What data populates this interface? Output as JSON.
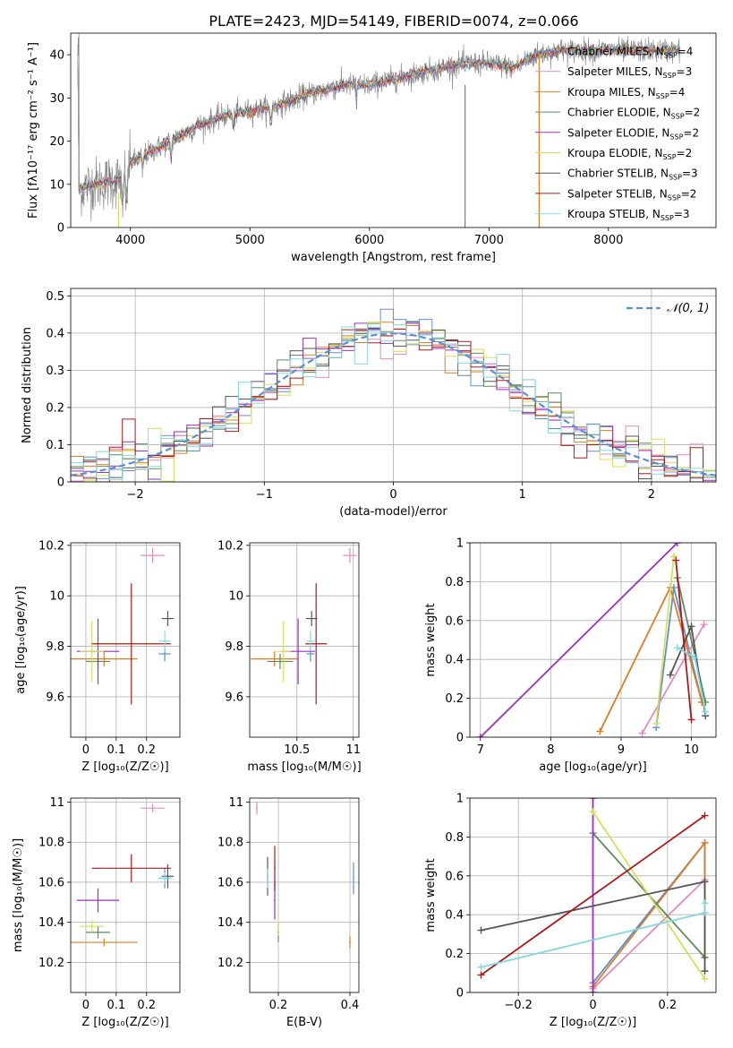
{
  "figure": {
    "title": "PLATE=2423, MJD=54149, FIBERID=0074, z=0.066"
  },
  "models": [
    {
      "name": "Chabrier MILES",
      "nssp": "4",
      "color": "#5b8fd6"
    },
    {
      "name": "Salpeter MILES",
      "nssp": "3",
      "color": "#e48ac0"
    },
    {
      "name": "Kroupa MILES",
      "nssp": "4",
      "color": "#e07b24"
    },
    {
      "name": "Chabrier ELODIE",
      "nssp": "2",
      "color": "#5e8a5e"
    },
    {
      "name": "Salpeter ELODIE",
      "nssp": "2",
      "color": "#9a2fc4"
    },
    {
      "name": "Kroupa ELODIE",
      "nssp": "2",
      "color": "#d4e05a"
    },
    {
      "name": "Chabrier STELIB",
      "nssp": "3",
      "color": "#555555"
    },
    {
      "name": "Salpeter STELIB",
      "nssp": "2",
      "color": "#b01818"
    },
    {
      "name": "Kroupa STELIB",
      "nssp": "3",
      "color": "#85d8e0"
    }
  ],
  "legend_nssp_prefix": "N",
  "legend_nssp_sub": "SSP",
  "chart_data": [
    {
      "type": "line",
      "panel": "spectrum",
      "xlabel": "wavelength [Angstrom, rest frame]",
      "ylabel": "Flux [fλ10⁻¹⁷ erg cm⁻² s⁻¹ A⁻¹]",
      "xlim": [
        3500,
        8900
      ],
      "ylim": [
        0,
        45
      ],
      "xticks": [
        4000,
        5000,
        6000,
        7000,
        8000
      ],
      "yticks": [
        0,
        10,
        20,
        30,
        40
      ],
      "grid": false,
      "legend": "right",
      "continuum_x": [
        3570,
        3700,
        3900,
        4000,
        4200,
        4400,
        4600,
        4800,
        5000,
        5200,
        5500,
        5800,
        6000,
        6300,
        6600,
        6800,
        7000,
        7200,
        7400,
        7600,
        7800,
        8000,
        8200,
        8400,
        8600
      ],
      "continuum_y": [
        9,
        10,
        11,
        15,
        18,
        21,
        24,
        26,
        27,
        28,
        31,
        33,
        33,
        35,
        37,
        38,
        38,
        37,
        40,
        41,
        41,
        41,
        41,
        41,
        41
      ]
    },
    {
      "type": "line",
      "panel": "residual-distribution",
      "xlabel": "(data-model)/error",
      "ylabel": "Normed distribution",
      "xlim": [
        -2.5,
        2.5
      ],
      "ylim": [
        0,
        0.52
      ],
      "xticks": [
        -2,
        -1,
        0,
        1,
        2
      ],
      "yticks": [
        0.0,
        0.1,
        0.2,
        0.3,
        0.4,
        0.5
      ],
      "grid": true,
      "legend": "top-right",
      "series": [
        {
          "name": "𝒩(0, 1)",
          "mu": 0,
          "sigma": 1
        }
      ]
    },
    {
      "type": "scatter",
      "panel": "age-vs-Z",
      "xlabel": "Z [log₁₀(Z/Z☉)]",
      "ylabel": "age  [log₁₀(age/yr)]",
      "xlim": [
        -0.05,
        0.31
      ],
      "ylim": [
        9.44,
        10.21
      ],
      "xticks": [
        0.0,
        0.1,
        0.2
      ],
      "yticks": [
        9.6,
        9.8,
        10.0,
        10.2
      ],
      "grid": true
    },
    {
      "type": "scatter",
      "panel": "age-vs-mass",
      "xlabel": "mass [log₁₀(M/M☉)]",
      "ylabel": "",
      "xlim": [
        10.08,
        11.05
      ],
      "ylim": [
        9.44,
        10.21
      ],
      "xticks": [
        10.5,
        11.0
      ],
      "yticks": [
        9.6,
        9.8,
        10.0,
        10.2
      ],
      "grid": true
    },
    {
      "type": "line",
      "panel": "weight-vs-age",
      "xlabel": "age  [log₁₀(age/yr)]",
      "ylabel": "mass weight",
      "xlim": [
        6.85,
        10.35
      ],
      "ylim": [
        0,
        1.0
      ],
      "xticks": [
        7,
        8,
        9,
        10
      ],
      "yticks": [
        0.0,
        0.2,
        0.4,
        0.6,
        0.8,
        1.0
      ],
      "grid": true
    },
    {
      "type": "scatter",
      "panel": "mass-vs-Z",
      "xlabel": "Z [log₁₀(Z/Z☉)]",
      "ylabel": "mass [log₁₀(M/M☉)]",
      "xlim": [
        -0.05,
        0.31
      ],
      "ylim": [
        10.05,
        11.02
      ],
      "xticks": [
        0.0,
        0.1,
        0.2
      ],
      "yticks": [
        10.2,
        10.4,
        10.6,
        10.8,
        11.0
      ],
      "grid": true
    },
    {
      "type": "scatter",
      "panel": "mass-vs-EBV",
      "xlabel": "E(B-V)",
      "ylabel": "",
      "xlim": [
        0.12,
        0.425
      ],
      "ylim": [
        10.05,
        11.02
      ],
      "xticks": [
        0.2,
        0.4
      ],
      "yticks": [
        10.2,
        10.4,
        10.6,
        10.8,
        11.0
      ],
      "grid": true
    },
    {
      "type": "line",
      "panel": "weight-vs-Z",
      "xlabel": "Z [log₁₀(Z/Z☉)]",
      "ylabel": "mass weight",
      "xlim": [
        -0.33,
        0.33
      ],
      "ylim": [
        0,
        1.0
      ],
      "xticks": [
        -0.2,
        0.0,
        0.2
      ],
      "yticks": [
        0.0,
        0.2,
        0.4,
        0.6,
        0.8,
        1.0
      ],
      "grid": true
    }
  ],
  "props": [
    {
      "Z": 0.26,
      "Zerr": 0.02,
      "age": 9.77,
      "ageerr": 0.03,
      "mass": 10.62,
      "masserr": 0.05,
      "ebv": 0.41,
      "ebverr": 0.001,
      "mserr": 0.01
    },
    {
      "Z": 0.22,
      "Zerr": 0.04,
      "age": 10.16,
      "ageerr": 0.03,
      "mass": 10.97,
      "masserr": 0.02,
      "ebv": 0.14,
      "ebverr": 0.001,
      "mserr": 0.05
    },
    {
      "Z": 0.06,
      "Zerr": 0.11,
      "age": 9.75,
      "ageerr": 0.03,
      "mass": 10.3,
      "masserr": 0.02,
      "ebv": 0.4,
      "ebverr": 0.001,
      "mserr": 0.2
    },
    {
      "Z": 0.04,
      "Zerr": 0.04,
      "age": 9.74,
      "ageerr": 0.03,
      "mass": 10.35,
      "masserr": 0.03,
      "ebv": 0.2,
      "ebverr": 0.001,
      "mserr": 0.1
    },
    {
      "Z": 0.04,
      "Zerr": 0.07,
      "age": 9.78,
      "ageerr": 0.13,
      "mass": 10.51,
      "masserr": 0.06,
      "ebv": 0.19,
      "ebverr": 0.001,
      "mserr": 0.12
    },
    {
      "Z": 0.02,
      "Zerr": 0.04,
      "age": 9.78,
      "ageerr": 0.12,
      "mass": 10.38,
      "masserr": 0.03,
      "ebv": 0.2,
      "ebverr": 0.001,
      "mserr": 0.05
    },
    {
      "Z": 0.27,
      "Zerr": 0.02,
      "age": 9.91,
      "ageerr": 0.03,
      "mass": 10.63,
      "masserr": 0.06,
      "ebv": 0.17,
      "ebverr": 0.001,
      "mserr": 0.02
    },
    {
      "Z": 0.15,
      "Zerr": 0.13,
      "age": 9.81,
      "ageerr": 0.24,
      "mass": 10.67,
      "masserr": 0.07,
      "ebv": 0.19,
      "ebverr": 0.001,
      "mserr": 0.06
    },
    {
      "Z": 0.26,
      "Zerr": 0.02,
      "age": 9.82,
      "ageerr": 0.04,
      "mass": 10.62,
      "masserr": 0.03,
      "ebv": 0.17,
      "ebverr": 0.001,
      "mserr": 0.02
    }
  ],
  "weights": [
    {
      "age": [
        10.15,
        9.75,
        9.5
      ],
      "w": [
        0.18,
        0.77,
        0.05
      ],
      "Z": [
        0.3,
        0.3,
        0.0
      ]
    },
    {
      "age": [
        10.18,
        9.3
      ],
      "w": [
        0.58,
        0.02
      ],
      "Z": [
        0.3,
        0.0
      ]
    },
    {
      "age": [
        10.15,
        9.7,
        8.7
      ],
      "w": [
        0.18,
        0.77,
        0.03
      ],
      "Z": [
        0.3,
        0.3,
        0.0
      ]
    },
    {
      "age": [
        10.2,
        9.8
      ],
      "w": [
        0.18,
        0.82
      ],
      "Z": [
        0.3,
        0.0
      ]
    },
    {
      "age": [
        9.8,
        7.0
      ],
      "w": [
        1.0,
        0.0
      ],
      "Z": [
        0.0,
        0.0
      ]
    },
    {
      "age": [
        9.5,
        9.75
      ],
      "w": [
        0.07,
        0.93
      ],
      "Z": [
        0.3,
        0.0
      ]
    },
    {
      "age": [
        9.7,
        10.0,
        10.2
      ],
      "w": [
        0.32,
        0.57,
        0.11
      ],
      "Z": [
        -0.3,
        0.3,
        0.3
      ]
    },
    {
      "age": [
        10.0,
        9.78
      ],
      "w": [
        0.09,
        0.91
      ],
      "Z": [
        -0.3,
        0.3
      ]
    },
    {
      "age": [
        9.8,
        10.05,
        10.2
      ],
      "w": [
        0.46,
        0.41,
        0.13
      ],
      "Z": [
        0.3,
        0.3,
        -0.3
      ]
    }
  ]
}
